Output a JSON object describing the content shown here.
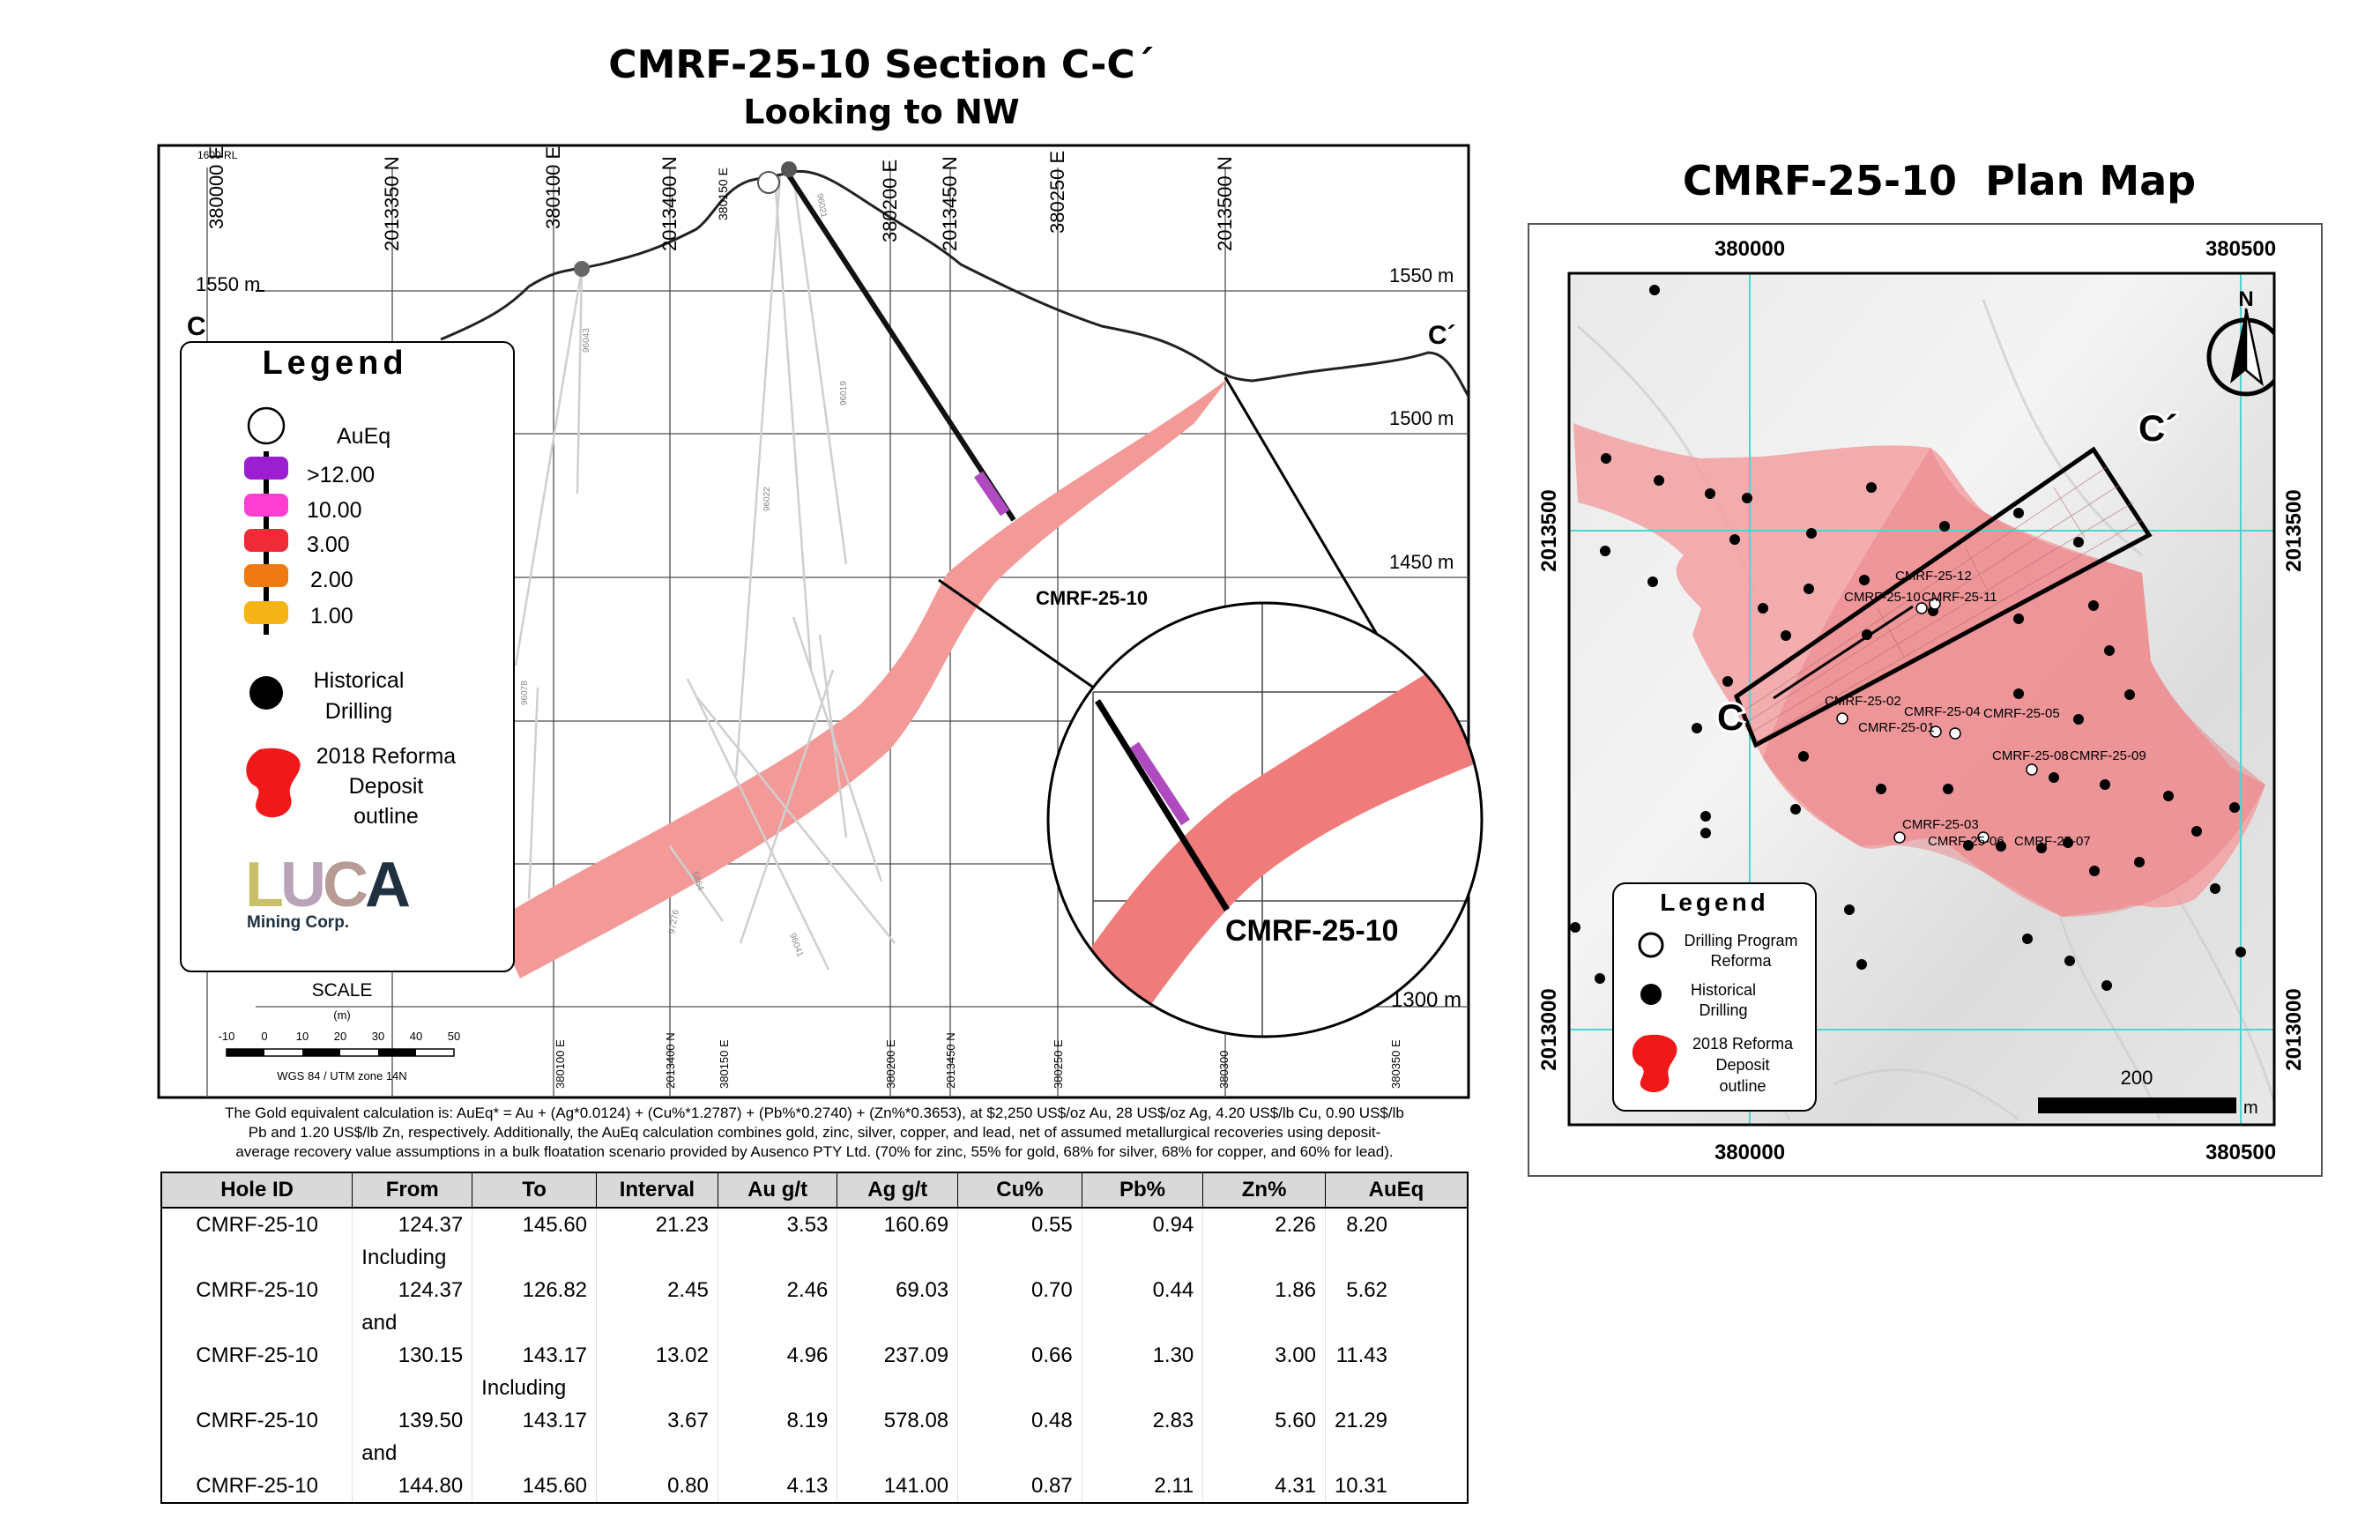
{
  "section": {
    "title": "CMRF-25-10 Section C-C´",
    "subtitle": "Looking to NW",
    "rl_label": "1600 RL",
    "top_ticks": [
      "380000 E",
      "2013350 N",
      "380100 E",
      "2013400 N",
      "380150 E",
      "380200 E",
      "2013450 N",
      "380250 E",
      "2013500 N"
    ],
    "bottom_ticks": [
      "380100 E",
      "2013400 N",
      "380150 E",
      "380200 E",
      "2013450 N",
      "380250 E",
      "380300",
      "380350 E"
    ],
    "elev_left": "1550 m",
    "elev_right": [
      "1550 m",
      "1500 m",
      "1450 m",
      "1300 m"
    ],
    "end_left": "C",
    "end_right": "C´",
    "hole_label": "CMRF-25-10",
    "zoom_hole_label": "CMRF-25-10",
    "historical_hole_ids": [
      "96043",
      "96019",
      "96022",
      "96021",
      "96078",
      "5864",
      "97276",
      "96041"
    ],
    "scale_title": "SCALE",
    "scale_unit": "(m)",
    "scale_ticks": [
      "-10",
      "0",
      "10",
      "20",
      "30",
      "40",
      "50"
    ],
    "scale_crs": "WGS 84 / UTM zone 14N",
    "legend": {
      "title": "Legend",
      "auEq": "AuEq",
      "bins": [
        {
          "label": ">12.00",
          "color": "#9b1fd1"
        },
        {
          "label": "10.00",
          "color": "#ff3fd2"
        },
        {
          "label": "3.00",
          "color": "#ef2b38"
        },
        {
          "label": "2.00",
          "color": "#f07a12"
        },
        {
          "label": "1.00",
          "color": "#f5b316"
        }
      ],
      "historical": [
        "Historical",
        "Drilling"
      ],
      "deposit": [
        "2018 Reforma",
        "Deposit",
        "outline"
      ],
      "logo_text": "LUCA",
      "logo_sub": "Mining Corp."
    }
  },
  "note_lines": [
    "The Gold equivalent calculation is: AuEq* = Au + (Ag*0.0124) + (Cu%*1.2787) + (Pb%*0.2740) + (Zn%*0.3653), at $2,250 US$/oz Au, 28 US$/oz Ag, 4.20 US$/lb Cu, 0.90 US$/lb",
    "Pb and 1.20 US$/lb Zn, respectively. Additionally, the AuEq calculation combines gold, zinc, silver, copper, and lead, net of assumed metallurgical recoveries using deposit-",
    "average recovery value assumptions in a bulk floatation scenario provided by Ausenco PTY Ltd. (70% for zinc, 55% for gold, 68% for silver, 68% for copper, and 60% for lead)."
  ],
  "table": {
    "headers": [
      "Hole ID",
      "From",
      "To",
      "Interval",
      "Au g/t",
      "Ag g/t",
      "Cu%",
      "Pb%",
      "Zn%",
      "AuEq"
    ],
    "rows": [
      {
        "type": "data",
        "cells": [
          "CMRF-25-10",
          "124.37",
          "145.60",
          "21.23",
          "3.53",
          "160.69",
          "0.55",
          "0.94",
          "2.26",
          "8.20"
        ]
      },
      {
        "type": "label",
        "col": 1,
        "text": "Including"
      },
      {
        "type": "data",
        "cells": [
          "CMRF-25-10",
          "124.37",
          "126.82",
          "2.45",
          "2.46",
          "69.03",
          "0.70",
          "0.44",
          "1.86",
          "5.62"
        ]
      },
      {
        "type": "label",
        "col": 1,
        "text": "and"
      },
      {
        "type": "data",
        "cells": [
          "CMRF-25-10",
          "130.15",
          "143.17",
          "13.02",
          "4.96",
          "237.09",
          "0.66",
          "1.30",
          "3.00",
          "11.43"
        ]
      },
      {
        "type": "label",
        "col": 2,
        "text": "Including"
      },
      {
        "type": "data",
        "cells": [
          "CMRF-25-10",
          "139.50",
          "143.17",
          "3.67",
          "8.19",
          "578.08",
          "0.48",
          "2.83",
          "5.60",
          "21.29"
        ]
      },
      {
        "type": "label",
        "col": 1,
        "text": "and"
      },
      {
        "type": "data",
        "cells": [
          "CMRF-25-10",
          "144.80",
          "145.60",
          "0.80",
          "4.13",
          "141.00",
          "0.87",
          "2.11",
          "4.31",
          "10.31"
        ]
      }
    ]
  },
  "plan": {
    "title": "CMRF-25-10  Plan Map",
    "x_labels": [
      "380000",
      "380500"
    ],
    "y_labels": [
      "2013500",
      "2013000"
    ],
    "north": "N",
    "end_left": "C",
    "end_right": "C´",
    "scale_value": "200",
    "scale_unit": "m",
    "holes": [
      "CMRF-25-12",
      "CMRF-25-10",
      "CMRF-25-11",
      "CMRF-25-02",
      "CMRF-25-04",
      "CMRF-25-05",
      "CMRF-25-01",
      "CMRF-25-08",
      "CMRF-25-09",
      "CMRF-25-03",
      "CMRF-25-06",
      "CMRF-25-07"
    ],
    "legend": {
      "title": "Legend",
      "program": [
        "Drilling Program",
        "Reforma"
      ],
      "historical": [
        "Historical",
        "Drilling"
      ],
      "deposit": [
        "2018 Reforma",
        "Deposit",
        "outline"
      ]
    }
  }
}
